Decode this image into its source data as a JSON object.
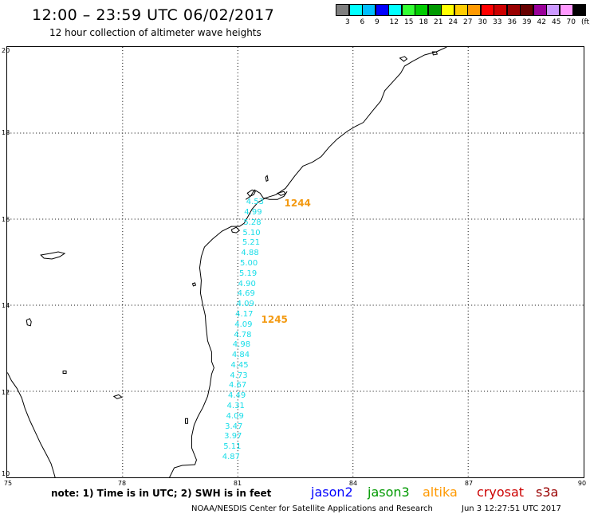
{
  "header": {
    "title": "12:00 – 23:59 UTC 06/02/2017",
    "subtitle": "12 hour collection of altimeter wave heights"
  },
  "legend": {
    "colors": [
      "#7f7f7f",
      "#00ffff",
      "#00bfff",
      "#0000ff",
      "#00ffff",
      "#33ff33",
      "#00cc00",
      "#009900",
      "#ffff00",
      "#ffcc00",
      "#ff9900",
      "#ff0000",
      "#cc0000",
      "#990000",
      "#660000",
      "#990099",
      "#cc99ff",
      "#ff99ff",
      "#000000"
    ],
    "labels": [
      "3",
      "6",
      "9",
      "12",
      "15",
      "18",
      "21",
      "24",
      "27",
      "30",
      "33",
      "36",
      "39",
      "42",
      "45",
      "70"
    ],
    "unit": "(ft)"
  },
  "map": {
    "lat_labels": [
      "20",
      "18",
      "16",
      "14",
      "12",
      "10"
    ],
    "lon_labels": [
      "75",
      "78",
      "81",
      "84",
      "87",
      "90"
    ]
  },
  "passes": [
    {
      "label": "1244",
      "lon": 82.5,
      "lat": 16.35
    },
    {
      "label": "1245",
      "lon": 81.9,
      "lat": 13.65
    }
  ],
  "wave_heights": [
    {
      "value": "4.53",
      "lon": 81.47,
      "lat": 16.37
    },
    {
      "value": "4.99",
      "lon": 81.42,
      "lat": 16.13
    },
    {
      "value": "5.28",
      "lon": 81.4,
      "lat": 15.88
    },
    {
      "value": "5.10",
      "lon": 81.38,
      "lat": 15.65
    },
    {
      "value": "5.21",
      "lon": 81.37,
      "lat": 15.42
    },
    {
      "value": "4.88",
      "lon": 81.34,
      "lat": 15.18
    },
    {
      "value": "5.00",
      "lon": 81.31,
      "lat": 14.95
    },
    {
      "value": "5.19",
      "lon": 81.29,
      "lat": 14.71
    },
    {
      "value": "4.90",
      "lon": 81.26,
      "lat": 14.47
    },
    {
      "value": "4.69",
      "lon": 81.24,
      "lat": 14.24
    },
    {
      "value": "4.09",
      "lon": 81.22,
      "lat": 14.0
    },
    {
      "value": "4.17",
      "lon": 81.19,
      "lat": 13.77
    },
    {
      "value": "4.09",
      "lon": 81.17,
      "lat": 13.53
    },
    {
      "value": "4.78",
      "lon": 81.15,
      "lat": 13.29
    },
    {
      "value": "4.98",
      "lon": 81.12,
      "lat": 13.06
    },
    {
      "value": "4.84",
      "lon": 81.1,
      "lat": 12.82
    },
    {
      "value": "4.45",
      "lon": 81.07,
      "lat": 12.59
    },
    {
      "value": "4.73",
      "lon": 81.05,
      "lat": 12.35
    },
    {
      "value": "4.67",
      "lon": 81.02,
      "lat": 12.12
    },
    {
      "value": "4.49",
      "lon": 81.0,
      "lat": 11.88
    },
    {
      "value": "4.31",
      "lon": 80.97,
      "lat": 11.65
    },
    {
      "value": "4.09",
      "lon": 80.95,
      "lat": 11.41
    },
    {
      "value": "3.47",
      "lon": 80.92,
      "lat": 11.17
    },
    {
      "value": "3.97",
      "lon": 80.9,
      "lat": 10.94
    },
    {
      "value": "5.11",
      "lon": 80.88,
      "lat": 10.7
    },
    {
      "value": "4.87",
      "lon": 80.85,
      "lat": 10.47
    }
  ],
  "footer": {
    "note": "note: 1) Time is in UTC; 2) SWH is in feet",
    "satellites": [
      {
        "name": "jason2",
        "color": "#0000ff"
      },
      {
        "name": "jason3",
        "color": "#009900"
      },
      {
        "name": "altika",
        "color": "#ff9900"
      },
      {
        "name": "cryosat",
        "color": "#cc0000"
      },
      {
        "name": "s3a",
        "color": "#990000"
      }
    ],
    "credit": "NOAA/NESDIS Center for Satellite Applications and Research",
    "timestamp": "Jun  3 12:27:51 UTC 2017"
  }
}
